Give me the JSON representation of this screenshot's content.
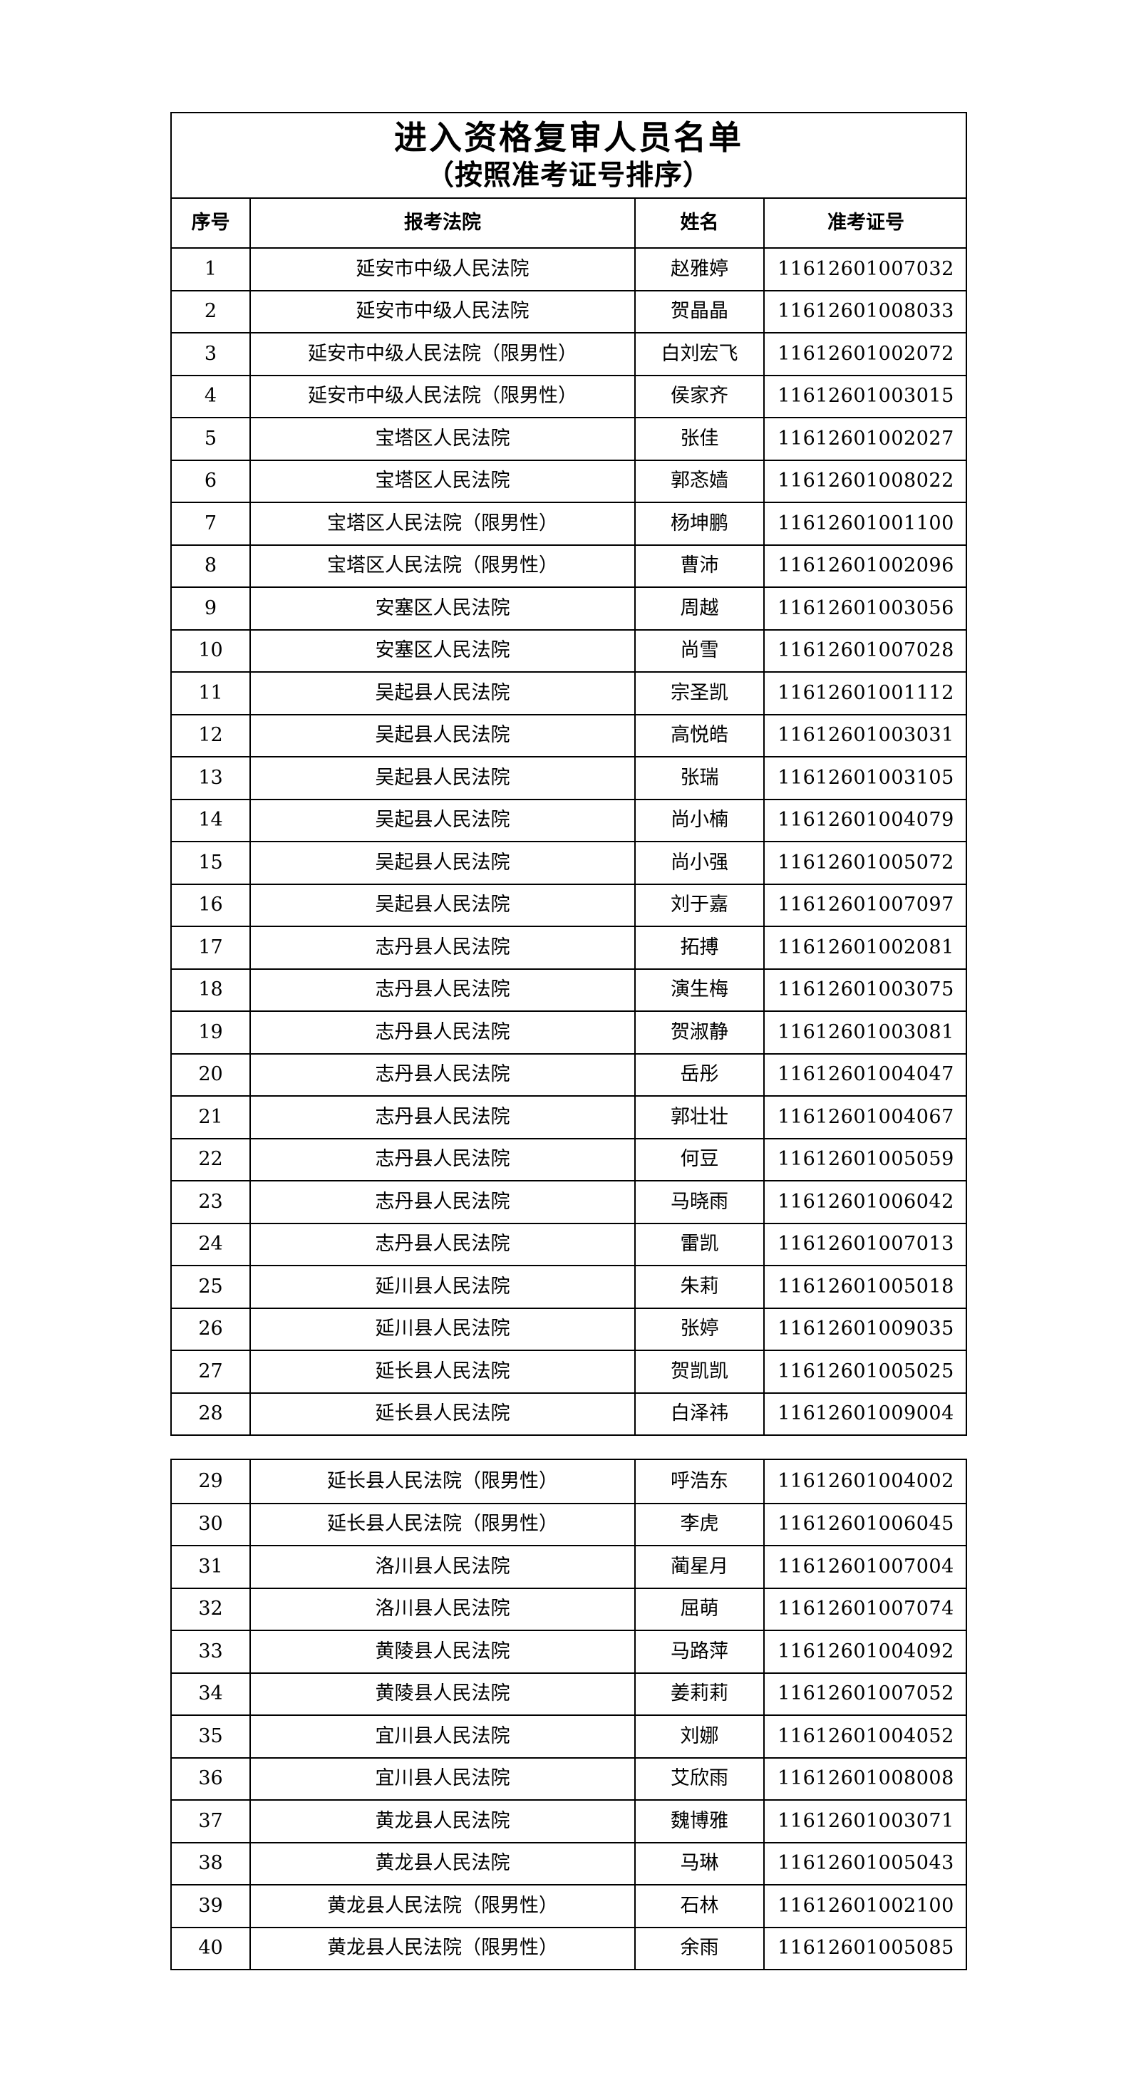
{
  "document": {
    "title": "进入资格复审人员名单",
    "subtitle": "（按照准考证号排序）"
  },
  "table": {
    "columns": [
      "序号",
      "报考法院",
      "姓名",
      "准考证号"
    ],
    "section_break_after_row": 28,
    "rows": [
      {
        "no": "1",
        "court": "延安市中级人民法院",
        "name": "赵雅婷",
        "ticket": "11612601007032"
      },
      {
        "no": "2",
        "court": "延安市中级人民法院",
        "name": "贺晶晶",
        "ticket": "11612601008033"
      },
      {
        "no": "3",
        "court": "延安市中级人民法院（限男性）",
        "name": "白刘宏飞",
        "ticket": "11612601002072"
      },
      {
        "no": "4",
        "court": "延安市中级人民法院（限男性）",
        "name": "侯家齐",
        "ticket": "11612601003015"
      },
      {
        "no": "5",
        "court": "宝塔区人民法院",
        "name": "张佳",
        "ticket": "11612601002027"
      },
      {
        "no": "6",
        "court": "宝塔区人民法院",
        "name": "郭忞嫱",
        "ticket": "11612601008022"
      },
      {
        "no": "7",
        "court": "宝塔区人民法院（限男性）",
        "name": "杨坤鹏",
        "ticket": "11612601001100"
      },
      {
        "no": "8",
        "court": "宝塔区人民法院（限男性）",
        "name": "曹沛",
        "ticket": "11612601002096"
      },
      {
        "no": "9",
        "court": "安塞区人民法院",
        "name": "周越",
        "ticket": "11612601003056"
      },
      {
        "no": "10",
        "court": "安塞区人民法院",
        "name": "尚雪",
        "ticket": "11612601007028"
      },
      {
        "no": "11",
        "court": "吴起县人民法院",
        "name": "宗圣凯",
        "ticket": "11612601001112"
      },
      {
        "no": "12",
        "court": "吴起县人民法院",
        "name": "高悦皓",
        "ticket": "11612601003031"
      },
      {
        "no": "13",
        "court": "吴起县人民法院",
        "name": "张瑞",
        "ticket": "11612601003105"
      },
      {
        "no": "14",
        "court": "吴起县人民法院",
        "name": "尚小楠",
        "ticket": "11612601004079"
      },
      {
        "no": "15",
        "court": "吴起县人民法院",
        "name": "尚小强",
        "ticket": "11612601005072"
      },
      {
        "no": "16",
        "court": "吴起县人民法院",
        "name": "刘于嘉",
        "ticket": "11612601007097"
      },
      {
        "no": "17",
        "court": "志丹县人民法院",
        "name": "拓搏",
        "ticket": "11612601002081"
      },
      {
        "no": "18",
        "court": "志丹县人民法院",
        "name": "演生梅",
        "ticket": "11612601003075"
      },
      {
        "no": "19",
        "court": "志丹县人民法院",
        "name": "贺淑静",
        "ticket": "11612601003081"
      },
      {
        "no": "20",
        "court": "志丹县人民法院",
        "name": "岳彤",
        "ticket": "11612601004047"
      },
      {
        "no": "21",
        "court": "志丹县人民法院",
        "name": "郭壮壮",
        "ticket": "11612601004067"
      },
      {
        "no": "22",
        "court": "志丹县人民法院",
        "name": "何豆",
        "ticket": "11612601005059"
      },
      {
        "no": "23",
        "court": "志丹县人民法院",
        "name": "马晓雨",
        "ticket": "11612601006042"
      },
      {
        "no": "24",
        "court": "志丹县人民法院",
        "name": "雷凯",
        "ticket": "11612601007013"
      },
      {
        "no": "25",
        "court": "延川县人民法院",
        "name": "朱莉",
        "ticket": "11612601005018"
      },
      {
        "no": "26",
        "court": "延川县人民法院",
        "name": "张婷",
        "ticket": "11612601009035"
      },
      {
        "no": "27",
        "court": "延长县人民法院",
        "name": "贺凯凯",
        "ticket": "11612601005025"
      },
      {
        "no": "28",
        "court": "延长县人民法院",
        "name": "白泽祎",
        "ticket": "11612601009004"
      },
      {
        "no": "29",
        "court": "延长县人民法院（限男性）",
        "name": "呼浩东",
        "ticket": "11612601004002"
      },
      {
        "no": "30",
        "court": "延长县人民法院（限男性）",
        "name": "李虎",
        "ticket": "11612601006045"
      },
      {
        "no": "31",
        "court": "洛川县人民法院",
        "name": "蔺星月",
        "ticket": "11612601007004"
      },
      {
        "no": "32",
        "court": "洛川县人民法院",
        "name": "屈萌",
        "ticket": "11612601007074"
      },
      {
        "no": "33",
        "court": "黄陵县人民法院",
        "name": "马路萍",
        "ticket": "11612601004092"
      },
      {
        "no": "34",
        "court": "黄陵县人民法院",
        "name": "姜莉莉",
        "ticket": "11612601007052"
      },
      {
        "no": "35",
        "court": "宜川县人民法院",
        "name": "刘娜",
        "ticket": "11612601004052"
      },
      {
        "no": "36",
        "court": "宜川县人民法院",
        "name": "艾欣雨",
        "ticket": "11612601008008"
      },
      {
        "no": "37",
        "court": "黄龙县人民法院",
        "name": "魏博雅",
        "ticket": "11612601003071"
      },
      {
        "no": "38",
        "court": "黄龙县人民法院",
        "name": "马琳",
        "ticket": "11612601005043"
      },
      {
        "no": "39",
        "court": "黄龙县人民法院（限男性）",
        "name": "石林",
        "ticket": "11612601002100"
      },
      {
        "no": "40",
        "court": "黄龙县人民法院（限男性）",
        "name": "余雨",
        "ticket": "11612601005085"
      }
    ]
  }
}
